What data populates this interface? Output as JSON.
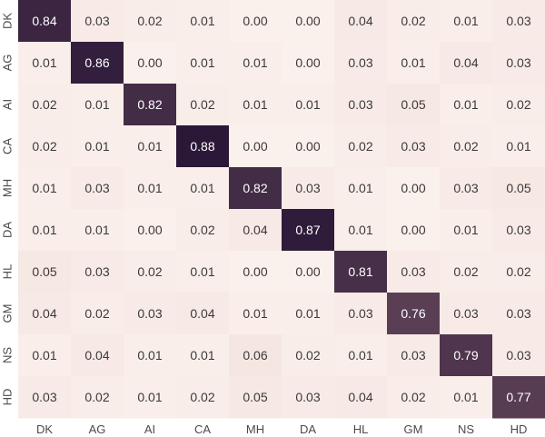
{
  "chart_data": {
    "type": "heatmap",
    "title": "",
    "xlabel": "",
    "ylabel": "",
    "x_labels": [
      "DK",
      "AG",
      "AI",
      "CA",
      "MH",
      "DA",
      "HL",
      "GM",
      "NS",
      "HD"
    ],
    "y_labels": [
      "DK",
      "AG",
      "AI",
      "CA",
      "MH",
      "DA",
      "HL",
      "GM",
      "NS",
      "HD"
    ],
    "values": [
      [
        0.84,
        0.03,
        0.02,
        0.01,
        0.0,
        0.0,
        0.04,
        0.02,
        0.01,
        0.03
      ],
      [
        0.01,
        0.86,
        0.0,
        0.01,
        0.01,
        0.0,
        0.03,
        0.01,
        0.04,
        0.03
      ],
      [
        0.02,
        0.01,
        0.82,
        0.02,
        0.01,
        0.01,
        0.03,
        0.05,
        0.01,
        0.02
      ],
      [
        0.02,
        0.01,
        0.01,
        0.88,
        0.0,
        0.0,
        0.02,
        0.03,
        0.02,
        0.01
      ],
      [
        0.01,
        0.03,
        0.01,
        0.01,
        0.82,
        0.03,
        0.01,
        0.0,
        0.03,
        0.05
      ],
      [
        0.01,
        0.01,
        0.0,
        0.02,
        0.04,
        0.87,
        0.01,
        0.0,
        0.01,
        0.03
      ],
      [
        0.05,
        0.03,
        0.02,
        0.01,
        0.0,
        0.0,
        0.81,
        0.03,
        0.02,
        0.02
      ],
      [
        0.04,
        0.02,
        0.03,
        0.04,
        0.01,
        0.01,
        0.03,
        0.76,
        0.03,
        0.03
      ],
      [
        0.01,
        0.04,
        0.01,
        0.01,
        0.06,
        0.02,
        0.01,
        0.03,
        0.79,
        0.03
      ],
      [
        0.03,
        0.02,
        0.01,
        0.02,
        0.05,
        0.03,
        0.04,
        0.02,
        0.01,
        0.77
      ]
    ],
    "value_format": "2 decimals",
    "value_range": [
      0,
      0.88
    ],
    "colors": {
      "low": "#faf0ec",
      "mid": "#d9a7a0",
      "high": "#2b1838",
      "text_light": "#ffffff",
      "text_dark": "#3a3a3a",
      "tick_text": "#4a4a4a"
    },
    "colorbar": false,
    "grid": false
  }
}
